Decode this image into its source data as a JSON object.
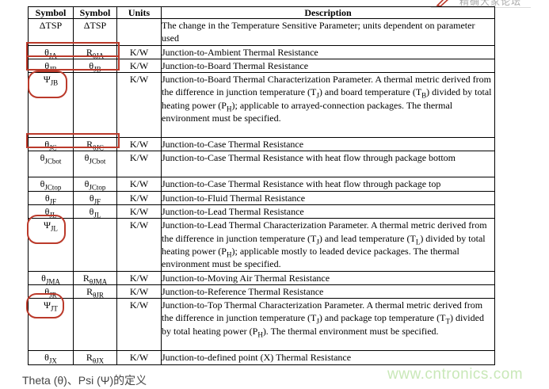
{
  "page": {
    "top_toolbar": {
      "icon": "red-pen-icon",
      "text": "精确大家论坛"
    },
    "caption": "Theta (θ)、Psi (Ψ)的定义",
    "watermark": "www.cntronics.com",
    "colors": {
      "annotation_red": "#bb3a2b",
      "watermark_green": "#c9e8b8",
      "table_border": "#000000"
    }
  },
  "table": {
    "headers": [
      "Symbol",
      "Symbol",
      "Units",
      "Description"
    ],
    "annotations": [
      {
        "type": "rect",
        "target": "θJA symbol cells"
      },
      {
        "type": "rect",
        "target": "θJB symbol cells"
      },
      {
        "type": "rounded",
        "target": "ΨJB symbol"
      },
      {
        "type": "rect",
        "target": "θJC symbol cells"
      },
      {
        "type": "rounded",
        "target": "ΨJL symbol"
      },
      {
        "type": "rounded",
        "target": "ΨJT symbol"
      }
    ],
    "rows": [
      {
        "c1": [
          {
            "t": "ΔTSP"
          }
        ],
        "c2": [
          {
            "t": "ΔTSP"
          }
        ],
        "units": "",
        "desc": [
          {
            "t": "The change in the Temperature Sensitive Parameter; units dependent on parameter used"
          }
        ]
      },
      {
        "c1": [
          {
            "t": "θ"
          },
          {
            "s": "JA"
          }
        ],
        "c2": [
          {
            "t": "R"
          },
          {
            "s": "θJA"
          }
        ],
        "units": "K/W",
        "desc": [
          {
            "t": "Junction-to-Ambient Thermal Resistance"
          }
        ]
      },
      {
        "c1": [
          {
            "t": "θ"
          },
          {
            "s": "JB"
          }
        ],
        "c2": [
          {
            "t": "θ"
          },
          {
            "s": "JB"
          }
        ],
        "units": "K/W",
        "desc": [
          {
            "t": "Junction-to-Board Thermal Resistance"
          }
        ]
      },
      {
        "c1": [
          {
            "t": "Ψ"
          },
          {
            "s": "JB"
          }
        ],
        "c2": [],
        "units": "K/W",
        "desc": [
          {
            "t": "Junction-to-Board Thermal Characterization Parameter. A thermal metric derived from the difference in junction temperature (T"
          },
          {
            "s": "J"
          },
          {
            "t": ") and board temperature (T"
          },
          {
            "s": "B"
          },
          {
            "t": ") divided by total heating power (P"
          },
          {
            "s": "H"
          },
          {
            "t": "); applicable to arrayed-connection packages. The thermal environment must be specified."
          }
        ]
      },
      {
        "c1": [
          {
            "t": "θ"
          },
          {
            "s": "JC"
          }
        ],
        "c2": [
          {
            "t": "R"
          },
          {
            "s": "θJC"
          }
        ],
        "units": "K/W",
        "desc": [
          {
            "t": "Junction-to-Case Thermal Resistance"
          }
        ]
      },
      {
        "c1": [
          {
            "t": "θ"
          },
          {
            "s": "JCbot"
          }
        ],
        "c2": [
          {
            "t": "θ"
          },
          {
            "s": "JCbot"
          }
        ],
        "units": "K/W",
        "desc": [
          {
            "t": "Junction-to-Case Thermal Resistance with heat flow through package bottom"
          }
        ]
      },
      {
        "c1": [
          {
            "t": "θ"
          },
          {
            "s": "JCtop"
          }
        ],
        "c2": [
          {
            "t": "θ"
          },
          {
            "s": "JCtop"
          }
        ],
        "units": "K/W",
        "desc": [
          {
            "t": "Junction-to-Case Thermal Resistance with heat flow through package top"
          }
        ]
      },
      {
        "c1": [
          {
            "t": "θ"
          },
          {
            "s": "JF"
          }
        ],
        "c2": [
          {
            "t": "θ"
          },
          {
            "s": "JF"
          }
        ],
        "units": "K/W",
        "desc": [
          {
            "t": "Junction-to-Fluid Thermal Resistance"
          }
        ]
      },
      {
        "c1": [
          {
            "t": "θ"
          },
          {
            "s": "JL"
          }
        ],
        "c2": [
          {
            "t": "θ"
          },
          {
            "s": "JL"
          }
        ],
        "units": "K/W",
        "desc": [
          {
            "t": "Junction-to-Lead Thermal Resistance"
          }
        ]
      },
      {
        "c1": [
          {
            "t": "Ψ"
          },
          {
            "s": "JL"
          }
        ],
        "c2": [],
        "units": "K/W",
        "desc": [
          {
            "t": "Junction-to-Lead Thermal Characterization Parameter. A thermal metric derived from the difference in junction temperature (T"
          },
          {
            "s": "J"
          },
          {
            "t": ") and lead temperature (T"
          },
          {
            "s": "L"
          },
          {
            "t": ") divided by total heating power (P"
          },
          {
            "s": "H"
          },
          {
            "t": "); applicable mostly to leaded device packages. The thermal environment must be specified."
          }
        ]
      },
      {
        "c1": [
          {
            "t": "θ"
          },
          {
            "s": "JMA"
          }
        ],
        "c2": [
          {
            "t": "R"
          },
          {
            "s": "θJMA"
          }
        ],
        "units": "K/W",
        "desc": [
          {
            "t": "Junction-to-Moving Air Thermal Resistance"
          }
        ]
      },
      {
        "c1": [
          {
            "t": "θ"
          },
          {
            "s": "JR"
          }
        ],
        "c2": [
          {
            "t": "R"
          },
          {
            "s": "θJR"
          }
        ],
        "units": "K/W",
        "desc": [
          {
            "t": "Junction-to-Reference Thermal Resistance"
          }
        ]
      },
      {
        "c1": [
          {
            "t": "Ψ"
          },
          {
            "s": "JT"
          }
        ],
        "c2": [],
        "units": "K/W",
        "desc": [
          {
            "t": "Junction-to-Top Thermal Characterization Parameter. A thermal metric derived from the difference in junction temperature (T"
          },
          {
            "s": "J"
          },
          {
            "t": ") and package top temperature (T"
          },
          {
            "s": "T"
          },
          {
            "t": ") divided by total heating power (P"
          },
          {
            "s": "H"
          },
          {
            "t": "). The thermal environment must be specified."
          }
        ]
      },
      {
        "c1": [
          {
            "t": "θ"
          },
          {
            "s": "JX"
          }
        ],
        "c2": [
          {
            "t": "R"
          },
          {
            "s": "θJX"
          }
        ],
        "units": "K/W",
        "desc": [
          {
            "t": "Junction-to-defined point (X) Thermal Resistance"
          }
        ]
      }
    ]
  }
}
